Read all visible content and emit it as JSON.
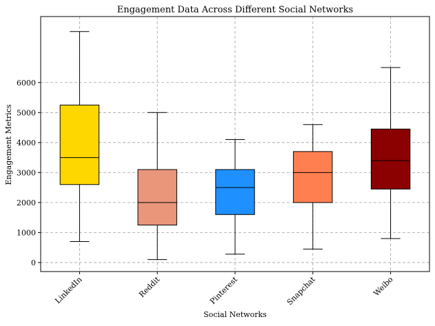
{
  "chart_data": {
    "type": "box",
    "title": "Engagement Data Across Different Social Networks",
    "xlabel": "Social Networks",
    "ylabel": "Engagement Metrics",
    "ylim": [
      -300,
      8200
    ],
    "yticks": [
      0,
      1000,
      2000,
      3000,
      4000,
      5000,
      6000
    ],
    "grid": true,
    "categories": [
      "LinkedIn",
      "Reddit",
      "Pinterest",
      "Snapchat",
      "Weibo"
    ],
    "boxes": [
      {
        "category": "LinkedIn",
        "min": 700,
        "q1": 2600,
        "median": 3500,
        "q3": 5250,
        "max": 7700,
        "color": "#FFD700"
      },
      {
        "category": "Reddit",
        "min": 100,
        "q1": 1250,
        "median": 2000,
        "q3": 3100,
        "max": 5000,
        "color": "#E9967A"
      },
      {
        "category": "Pinterest",
        "min": 280,
        "q1": 1600,
        "median": 2500,
        "q3": 3100,
        "max": 4100,
        "color": "#1E90FF"
      },
      {
        "category": "Snapchat",
        "min": 450,
        "q1": 2000,
        "median": 3000,
        "q3": 3700,
        "max": 4600,
        "color": "#FF7F50"
      },
      {
        "category": "Weibo",
        "min": 800,
        "q1": 2450,
        "median": 3400,
        "q3": 4450,
        "max": 6500,
        "color": "#8B0000"
      }
    ]
  }
}
